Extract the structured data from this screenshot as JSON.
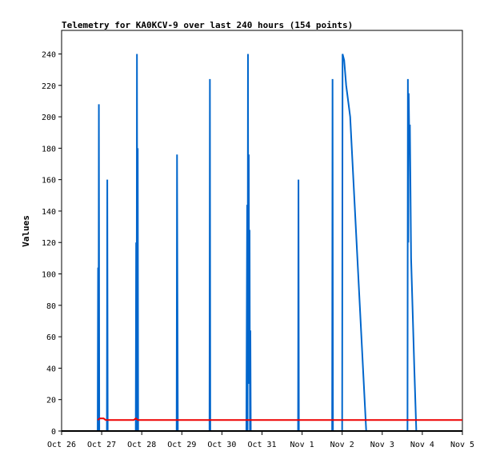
{
  "chart_data": {
    "type": "line",
    "title": "Telemetry for KA0KCV-9 over last 240 hours (154 points)",
    "xlabel": "",
    "ylabel": "Values",
    "x_tick_labels": [
      "Oct 26",
      "Oct 27",
      "Oct 28",
      "Oct 29",
      "Oct 30",
      "Oct 31",
      "Nov 1",
      "Nov 2",
      "Nov 3",
      "Nov 4",
      "Nov 5"
    ],
    "xlim_days": [
      0,
      10
    ],
    "ylim": [
      0,
      255
    ],
    "y_ticks": [
      0,
      20,
      40,
      60,
      80,
      100,
      120,
      140,
      160,
      180,
      200,
      220,
      240
    ],
    "grid": false,
    "legend": "none",
    "series": [
      {
        "color": "#0066cc",
        "points": [
          [
            0.9,
            0
          ],
          [
            0.91,
            104
          ],
          [
            0.92,
            0
          ],
          [
            0.93,
            208
          ],
          [
            0.94,
            0
          ],
          [
            1.13,
            0
          ],
          [
            1.14,
            160
          ],
          [
            1.15,
            0
          ],
          [
            1.85,
            0
          ],
          [
            1.86,
            120
          ],
          [
            1.87,
            0
          ],
          [
            1.88,
            240
          ],
          [
            1.89,
            60
          ],
          [
            1.9,
            180
          ],
          [
            1.91,
            0
          ],
          [
            2.87,
            0
          ],
          [
            2.88,
            176
          ],
          [
            2.89,
            88
          ],
          [
            2.9,
            0
          ],
          [
            3.69,
            0
          ],
          [
            3.7,
            224
          ],
          [
            3.71,
            0
          ],
          [
            4.61,
            0
          ],
          [
            4.62,
            72
          ],
          [
            4.63,
            144
          ],
          [
            4.64,
            0
          ],
          [
            4.65,
            240
          ],
          [
            4.66,
            30
          ],
          [
            4.67,
            176
          ],
          [
            4.68,
            30
          ],
          [
            4.69,
            128
          ],
          [
            4.7,
            0
          ],
          [
            4.71,
            64
          ],
          [
            4.72,
            0
          ],
          [
            5.9,
            0
          ],
          [
            5.91,
            160
          ],
          [
            5.92,
            0
          ],
          [
            6.75,
            0
          ],
          [
            6.76,
            224
          ],
          [
            6.77,
            0
          ],
          [
            7.0,
            0
          ],
          [
            7.01,
            240
          ],
          [
            7.05,
            236
          ],
          [
            7.1,
            220
          ],
          [
            7.2,
            200
          ],
          [
            7.6,
            0
          ],
          [
            8.63,
            0
          ],
          [
            8.64,
            224
          ],
          [
            8.65,
            120
          ],
          [
            8.66,
            215
          ],
          [
            8.68,
            176
          ],
          [
            8.69,
            195
          ],
          [
            8.72,
            110
          ],
          [
            8.8,
            40
          ],
          [
            8.85,
            0
          ]
        ]
      },
      {
        "color": "#ee0000",
        "points": [
          [
            0.9,
            7
          ],
          [
            0.95,
            8
          ],
          [
            1.05,
            8
          ],
          [
            1.1,
            7
          ],
          [
            1.2,
            7
          ],
          [
            1.8,
            7
          ],
          [
            1.85,
            8
          ],
          [
            1.9,
            7
          ],
          [
            10.0,
            7
          ]
        ]
      }
    ]
  }
}
